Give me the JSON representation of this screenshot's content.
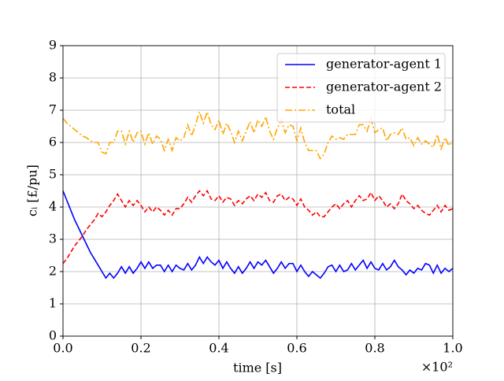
{
  "chart_data": {
    "type": "line",
    "xlabel": "time [s]",
    "ylabel": "cᵢ [£/pu]",
    "x_offset_label": "×10²",
    "x": [
      0,
      0.01,
      0.02,
      0.03,
      0.04,
      0.05,
      0.06,
      0.07,
      0.08,
      0.09,
      0.1,
      0.11,
      0.12,
      0.13,
      0.14,
      0.15,
      0.16,
      0.17,
      0.18,
      0.19,
      0.2,
      0.21,
      0.22,
      0.23,
      0.24,
      0.25,
      0.26,
      0.27,
      0.28,
      0.29,
      0.3,
      0.31,
      0.32,
      0.33,
      0.34,
      0.35,
      0.36,
      0.37,
      0.38,
      0.39,
      0.4,
      0.41,
      0.42,
      0.43,
      0.44,
      0.45,
      0.46,
      0.47,
      0.48,
      0.49,
      0.5,
      0.51,
      0.52,
      0.53,
      0.54,
      0.55,
      0.56,
      0.57,
      0.58,
      0.59,
      0.6,
      0.61,
      0.62,
      0.63,
      0.64,
      0.65,
      0.66,
      0.67,
      0.68,
      0.69,
      0.7,
      0.71,
      0.72,
      0.73,
      0.74,
      0.75,
      0.76,
      0.77,
      0.78,
      0.79,
      0.8,
      0.81,
      0.82,
      0.83,
      0.84,
      0.85,
      0.86,
      0.87,
      0.88,
      0.89,
      0.9,
      0.91,
      0.92,
      0.93,
      0.94,
      0.95,
      0.96,
      0.97,
      0.98,
      0.99,
      1.0
    ],
    "series": [
      {
        "name": "generator-agent 1",
        "color": "#0000ff",
        "dash": "solid",
        "values": [
          4.5,
          4.2,
          3.9,
          3.6,
          3.35,
          3.1,
          2.85,
          2.6,
          2.4,
          2.2,
          2.0,
          1.8,
          1.95,
          1.8,
          1.95,
          2.15,
          1.95,
          2.15,
          1.95,
          2.1,
          2.3,
          2.1,
          2.3,
          2.1,
          2.2,
          2.2,
          2.0,
          2.2,
          2.0,
          2.2,
          2.1,
          2.05,
          2.25,
          2.05,
          2.2,
          2.45,
          2.25,
          2.45,
          2.3,
          2.2,
          2.35,
          2.1,
          2.3,
          2.1,
          1.95,
          2.15,
          1.95,
          2.1,
          2.3,
          2.1,
          2.3,
          2.2,
          2.35,
          2.15,
          1.95,
          2.1,
          2.3,
          2.1,
          2.25,
          2.25,
          2.0,
          2.2,
          2.0,
          1.85,
          2.0,
          1.9,
          1.8,
          1.95,
          2.15,
          2.2,
          2.0,
          2.2,
          2.0,
          2.05,
          2.25,
          2.05,
          2.2,
          2.35,
          2.1,
          2.3,
          2.1,
          2.05,
          2.25,
          2.05,
          2.15,
          2.35,
          2.15,
          2.05,
          1.9,
          2.05,
          1.95,
          2.1,
          2.05,
          2.25,
          2.2,
          1.95,
          2.2,
          1.95,
          2.1,
          2.0,
          2.1
        ]
      },
      {
        "name": "generator-agent 2",
        "color": "#ff0000",
        "dash": "dashed",
        "values": [
          2.25,
          2.4,
          2.6,
          2.8,
          2.95,
          3.1,
          3.3,
          3.45,
          3.6,
          3.8,
          3.7,
          3.85,
          4.05,
          4.2,
          4.4,
          4.2,
          4.0,
          4.2,
          4.05,
          4.2,
          4.05,
          3.85,
          4.0,
          3.85,
          4.0,
          3.9,
          3.75,
          3.9,
          3.75,
          3.95,
          3.95,
          4.1,
          4.3,
          4.15,
          4.35,
          4.5,
          4.35,
          4.5,
          4.25,
          4.2,
          4.35,
          4.15,
          4.3,
          4.25,
          4.05,
          4.2,
          4.1,
          4.25,
          4.35,
          4.2,
          4.4,
          4.3,
          4.45,
          4.2,
          4.15,
          4.35,
          4.4,
          4.2,
          4.3,
          4.25,
          4.05,
          4.25,
          4.0,
          3.9,
          3.75,
          3.85,
          3.7,
          3.7,
          3.85,
          4.0,
          4.1,
          3.95,
          4.1,
          4.2,
          4.0,
          4.2,
          4.35,
          4.2,
          4.25,
          4.45,
          4.2,
          4.35,
          4.2,
          4.0,
          4.1,
          3.95,
          4.1,
          4.4,
          4.2,
          4.1,
          3.95,
          4.05,
          3.9,
          3.8,
          3.75,
          3.9,
          4.05,
          3.85,
          4.05,
          3.9,
          3.95
        ]
      },
      {
        "name": "total",
        "color": "#ffa500",
        "dash": "dashdot",
        "values": [
          6.75,
          6.6,
          6.5,
          6.4,
          6.3,
          6.2,
          6.15,
          6.05,
          6.0,
          6.0,
          5.7,
          5.65,
          6.0,
          6.0,
          6.35,
          6.35,
          5.95,
          6.35,
          6.0,
          6.3,
          6.35,
          5.95,
          6.3,
          5.95,
          6.2,
          6.1,
          5.75,
          6.1,
          5.75,
          6.15,
          6.05,
          6.15,
          6.55,
          6.2,
          6.55,
          6.95,
          6.6,
          6.95,
          6.55,
          6.4,
          6.7,
          6.25,
          6.6,
          6.35,
          6.0,
          6.35,
          6.05,
          6.35,
          6.65,
          6.3,
          6.7,
          6.5,
          6.8,
          6.35,
          6.1,
          6.45,
          6.7,
          6.3,
          6.55,
          6.5,
          6.05,
          6.45,
          6.0,
          5.75,
          5.75,
          5.75,
          5.5,
          5.65,
          6.0,
          6.2,
          6.1,
          6.15,
          6.1,
          6.25,
          6.25,
          6.25,
          6.55,
          6.55,
          6.35,
          6.75,
          6.3,
          6.4,
          6.45,
          6.05,
          6.25,
          6.3,
          6.25,
          6.45,
          6.1,
          6.15,
          5.9,
          6.15,
          5.95,
          6.05,
          5.95,
          5.85,
          6.25,
          5.8,
          6.15,
          5.9,
          6.05
        ]
      }
    ],
    "xlim": [
      0,
      1
    ],
    "ylim": [
      0,
      9
    ],
    "xticks": [
      {
        "value": 0,
        "label": "0.0"
      },
      {
        "value": 0.2,
        "label": "0.2"
      },
      {
        "value": 0.4,
        "label": "0.4"
      },
      {
        "value": 0.6,
        "label": "0.6"
      },
      {
        "value": 0.8,
        "label": "0.8"
      },
      {
        "value": 1,
        "label": "1.0"
      }
    ],
    "yticks": [
      0,
      1,
      2,
      3,
      4,
      5,
      6,
      7,
      8,
      9
    ],
    "grid": true,
    "legend": "upper right"
  }
}
